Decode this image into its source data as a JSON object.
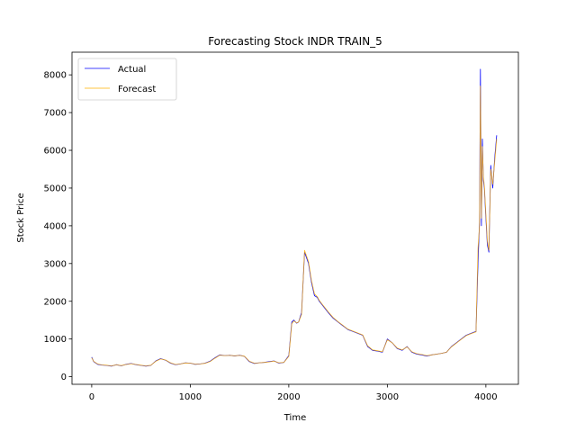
{
  "chart_data": {
    "type": "line",
    "title": "Forecasting Stock INDR TRAIN_5",
    "xlabel": "Time",
    "ylabel": "Stock Price",
    "xlim": [
      -200,
      4330
    ],
    "ylim": [
      -200,
      8600
    ],
    "xticks": [
      0,
      1000,
      2000,
      3000,
      4000
    ],
    "yticks": [
      0,
      1000,
      2000,
      3000,
      4000,
      5000,
      6000,
      7000,
      8000
    ],
    "grid": false,
    "legend": {
      "placement": "top-left"
    },
    "series": [
      {
        "name": "Actual",
        "color": "#0000ff",
        "x": [
          0,
          20,
          60,
          100,
          150,
          200,
          250,
          300,
          350,
          400,
          450,
          500,
          550,
          600,
          650,
          700,
          750,
          800,
          850,
          900,
          950,
          1000,
          1050,
          1100,
          1150,
          1200,
          1250,
          1300,
          1350,
          1400,
          1450,
          1500,
          1550,
          1600,
          1650,
          1700,
          1750,
          1800,
          1850,
          1900,
          1950,
          2000,
          2030,
          2050,
          2080,
          2100,
          2130,
          2160,
          2180,
          2200,
          2230,
          2260,
          2290,
          2310,
          2340,
          2370,
          2400,
          2450,
          2500,
          2550,
          2600,
          2650,
          2700,
          2750,
          2800,
          2850,
          2900,
          2950,
          3000,
          3050,
          3100,
          3150,
          3200,
          3250,
          3300,
          3350,
          3400,
          3450,
          3500,
          3550,
          3600,
          3650,
          3700,
          3750,
          3800,
          3850,
          3900,
          3920,
          3935,
          3945,
          3955,
          3965,
          3975,
          3985,
          4000,
          4015,
          4030,
          4050,
          4070,
          4090,
          4110
        ],
        "y": [
          520,
          400,
          330,
          310,
          300,
          280,
          320,
          290,
          330,
          350,
          320,
          300,
          280,
          300,
          420,
          480,
          440,
          360,
          320,
          340,
          370,
          360,
          330,
          340,
          360,
          410,
          500,
          580,
          560,
          570,
          550,
          570,
          540,
          400,
          350,
          370,
          380,
          400,
          420,
          360,
          380,
          560,
          1450,
          1500,
          1420,
          1450,
          1700,
          3300,
          3150,
          3000,
          2500,
          2150,
          2100,
          2000,
          1900,
          1800,
          1700,
          1550,
          1450,
          1350,
          1250,
          1200,
          1150,
          1100,
          800,
          700,
          680,
          650,
          1000,
          900,
          750,
          700,
          800,
          650,
          600,
          580,
          550,
          580,
          600,
          620,
          650,
          800,
          900,
          1000,
          1100,
          1150,
          1200,
          3000,
          4100,
          8150,
          4000,
          6300,
          5200,
          5000,
          4200,
          3500,
          3300,
          5600,
          5000,
          5800,
          6400
        ]
      },
      {
        "name": "Forecast",
        "color": "#ffb000",
        "x": [
          0,
          20,
          60,
          100,
          150,
          200,
          250,
          300,
          350,
          400,
          450,
          500,
          550,
          600,
          650,
          700,
          750,
          800,
          850,
          900,
          950,
          1000,
          1050,
          1100,
          1150,
          1200,
          1250,
          1300,
          1350,
          1400,
          1450,
          1500,
          1550,
          1600,
          1650,
          1700,
          1750,
          1800,
          1850,
          1900,
          1950,
          2000,
          2030,
          2050,
          2080,
          2100,
          2130,
          2160,
          2180,
          2200,
          2230,
          2260,
          2290,
          2310,
          2340,
          2370,
          2400,
          2450,
          2500,
          2550,
          2600,
          2650,
          2700,
          2750,
          2800,
          2850,
          2900,
          2950,
          3000,
          3050,
          3100,
          3150,
          3200,
          3250,
          3300,
          3350,
          3400,
          3450,
          3500,
          3550,
          3600,
          3650,
          3700,
          3750,
          3800,
          3850,
          3900,
          3920,
          3935,
          3945,
          3955,
          3965,
          3975,
          3985,
          4000,
          4015,
          4030,
          4050,
          4070,
          4090,
          4110
        ],
        "y": [
          500,
          410,
          340,
          315,
          305,
          290,
          315,
          295,
          325,
          345,
          325,
          305,
          290,
          305,
          410,
          470,
          445,
          370,
          325,
          340,
          365,
          360,
          335,
          340,
          355,
          400,
          490,
          570,
          560,
          565,
          555,
          565,
          545,
          410,
          360,
          370,
          380,
          395,
          415,
          370,
          380,
          540,
          1400,
          1480,
          1430,
          1450,
          1650,
          3350,
          3200,
          3050,
          2550,
          2200,
          2120,
          2020,
          1920,
          1820,
          1720,
          1570,
          1460,
          1360,
          1260,
          1210,
          1160,
          1110,
          820,
          710,
          690,
          660,
          980,
          900,
          760,
          710,
          790,
          660,
          610,
          590,
          560,
          580,
          600,
          620,
          650,
          790,
          890,
          990,
          1090,
          1140,
          1190,
          3400,
          4000,
          7700,
          4200,
          6100,
          5300,
          5050,
          4300,
          3600,
          3350,
          5500,
          5100,
          5700,
          6300
        ]
      }
    ]
  }
}
